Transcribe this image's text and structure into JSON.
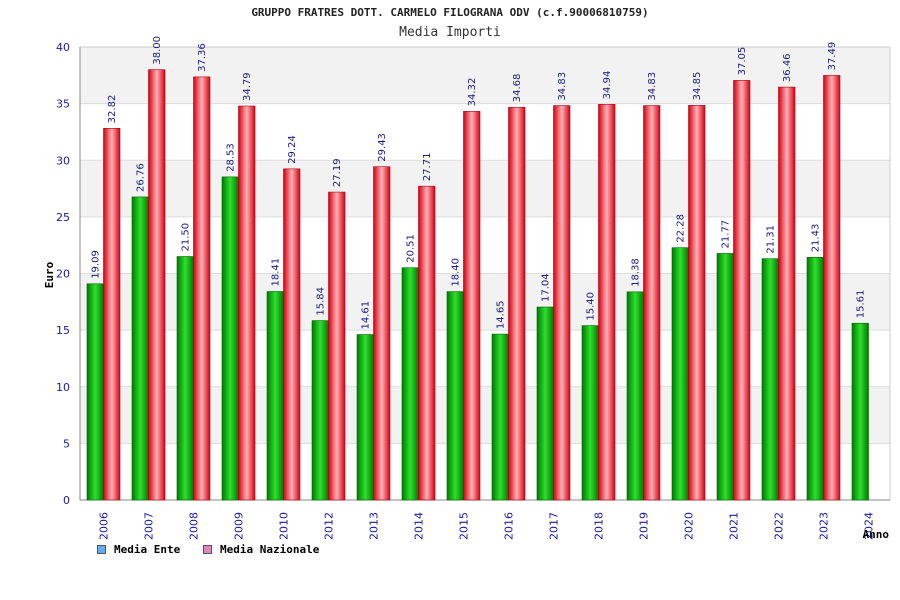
{
  "chart_data": {
    "type": "bar",
    "title": "GRUPPO FRATRES DOTT. CARMELO FILOGRANA ODV (c.f.90006810759)",
    "subtitle": "Media Importi",
    "ylabel": "Euro",
    "xlabel": "Anno",
    "ylim": [
      0,
      40
    ],
    "yticks": [
      "0",
      "5",
      "10",
      "15",
      "20",
      "25",
      "30",
      "35",
      "40"
    ],
    "categories": [
      "2006",
      "2007",
      "2008",
      "2009",
      "2010",
      "2012",
      "2013",
      "2014",
      "2015",
      "2016",
      "2017",
      "2018",
      "2019",
      "2020",
      "2021",
      "2022",
      "2023",
      "2024"
    ],
    "series": [
      {
        "name": "Media Ente",
        "color": "#00aa00",
        "values": [
          19.09,
          26.76,
          21.5,
          28.53,
          18.41,
          15.84,
          14.61,
          20.51,
          18.4,
          14.65,
          17.04,
          15.4,
          18.38,
          22.28,
          21.77,
          21.31,
          21.43,
          15.61
        ],
        "labels": [
          "19.09",
          "26.76",
          "21.50",
          "28.53",
          "18.41",
          "15.84",
          "14.61",
          "20.51",
          "18.40",
          "14.65",
          "17.04",
          "15.40",
          "18.38",
          "22.28",
          "21.77",
          "21.31",
          "21.43",
          "15.61"
        ]
      },
      {
        "name": "Media Nazionale",
        "color": "#ee2233",
        "values": [
          32.82,
          38.0,
          37.36,
          34.79,
          29.24,
          27.19,
          29.43,
          27.71,
          34.32,
          34.68,
          34.83,
          34.94,
          34.83,
          34.85,
          37.05,
          36.46,
          37.49,
          null
        ],
        "labels": [
          "32.82",
          "38.00",
          "37.36",
          "34.79",
          "29.24",
          "27.19",
          "29.43",
          "27.71",
          "34.32",
          "34.68",
          "34.83",
          "34.94",
          "34.83",
          "34.85",
          "37.05",
          "36.46",
          "37.49",
          ""
        ]
      }
    ],
    "legend": {
      "position": "bottom-left",
      "swatch_colors": [
        "#66aaee",
        "#dd88bb"
      ]
    }
  }
}
